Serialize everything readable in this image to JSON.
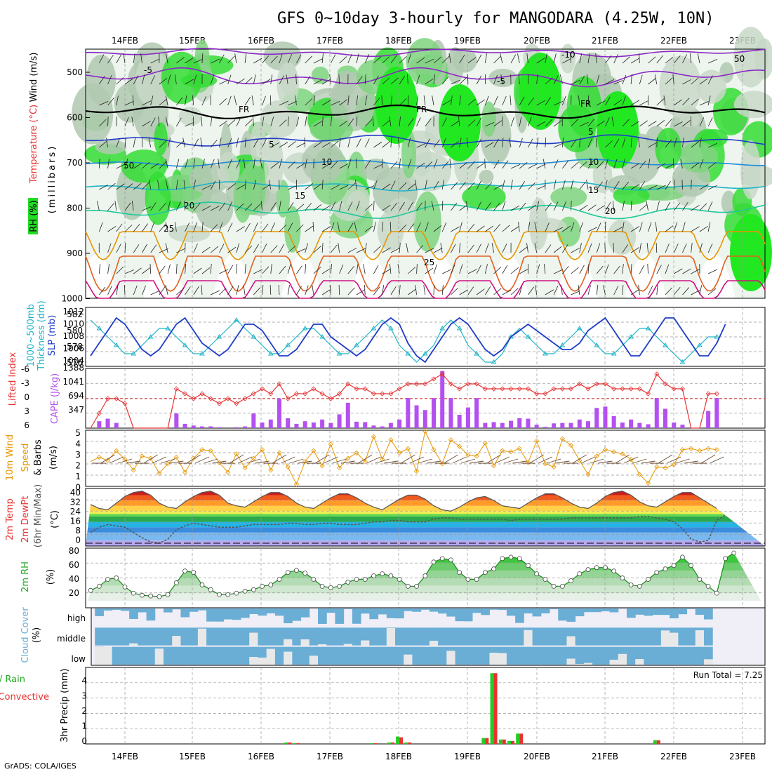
{
  "title": "GFS 0~10day 3-hourly for MANGODARA (4.25W, 10N)",
  "footer": "GrADS: COLA/IGES",
  "dates": [
    "14FEB",
    "15FEB",
    "16FEB",
    "17FEB",
    "18FEB",
    "19FEB",
    "20FEB",
    "21FEB",
    "22FEB",
    "23FEB"
  ],
  "colors": {
    "green": "#00c800",
    "red": "#e83232",
    "orange": "#e69600",
    "purple": "#b450f0",
    "blue": "#1e3cc8",
    "cyan": "#1eb4c8",
    "cloud": "#6aaed6"
  },
  "panels": {
    "upper_air": {
      "labels": [
        "RH (%)",
        "Temperature (°C)",
        "Wind (m/s)",
        "(millibars)"
      ],
      "y_ticks": [
        "500",
        "600",
        "700",
        "800",
        "900",
        "1000"
      ],
      "contour_labels": [
        "-10",
        "-5",
        "-5",
        "FR",
        "FR",
        "FR",
        "5",
        "5",
        "10",
        "10",
        "15",
        "15",
        "20",
        "20",
        "25",
        "25",
        "50",
        "50"
      ]
    },
    "slp": {
      "labels": [
        "1000~500mb",
        "Thickness (dm)",
        "SLP (mb)"
      ],
      "left_ticks": [
        "582",
        "580",
        "578",
        "576"
      ],
      "right_ticks": [
        "1012",
        "1010",
        "1008",
        "1006",
        "1004"
      ]
    },
    "cape": {
      "labels": [
        "Lifted Index",
        "CAPE (J/kg)"
      ],
      "left_ticks": [
        "-6",
        "-3",
        "0",
        "3",
        "6"
      ],
      "right_ticks": [
        "1388",
        "1041",
        "694",
        "347"
      ]
    },
    "wind10m": {
      "labels": [
        "10m Wind",
        "Speed",
        "& Barbs",
        "(m/s)"
      ],
      "y_ticks": [
        "5",
        "4",
        "3",
        "2",
        "1",
        "0"
      ]
    },
    "temp2m": {
      "labels": [
        "2m Temp",
        "2m DewPt",
        "(6hr Min/Max)",
        "(°C)"
      ],
      "y_ticks": [
        "40",
        "32",
        "24",
        "16",
        "8",
        "0"
      ]
    },
    "rh2m": {
      "labels": [
        "2m RH",
        "(%)"
      ],
      "y_ticks": [
        "80",
        "60",
        "40",
        "20"
      ]
    },
    "cloud": {
      "labels": [
        "Cloud Cover",
        "(%)"
      ],
      "levels": [
        "high",
        "middle",
        "low"
      ]
    },
    "precip": {
      "labels": [
        "Total / Rain",
        "Convective",
        "3hr Precip (mm)"
      ],
      "y_ticks": [
        "4",
        "3",
        "2",
        "1",
        "0"
      ],
      "run_total": "Run Total = 7.25"
    }
  },
  "chart_data": [
    {
      "type": "line",
      "name_key": "slp",
      "x_unit": "forecast step (3-hourly)",
      "series": [
        {
          "name": "SLP (mb)",
          "values": [
            1010,
            1010,
            1010,
            1009,
            1008,
            1006,
            1006,
            1008,
            1010,
            1009,
            1008,
            1007,
            1005,
            1005,
            1007,
            1009,
            1011,
            1010,
            1008,
            1006,
            1005,
            1006,
            1008,
            1010,
            1011,
            1009,
            1007,
            1006,
            1005,
            1006,
            1008,
            1010,
            1010,
            1009,
            1007,
            1005,
            1005,
            1006,
            1008,
            1010,
            1010,
            1008,
            1007,
            1006,
            1005,
            1006,
            1008,
            1010,
            1011,
            1010,
            1007,
            1005,
            1004,
            1006,
            1008,
            1010,
            1011,
            1010,
            1008,
            1006,
            1005,
            1006,
            1008,
            1009,
            1010,
            1009,
            1008,
            1007,
            1006,
            1006,
            1007,
            1009,
            1010,
            1011,
            1009,
            1007,
            1005,
            1005,
            1007,
            1009,
            1011,
            1011,
            1009,
            1007,
            1005,
            1005,
            1007,
            1010
          ]
        },
        {
          "name": "1000~500mb Thickness (dm)",
          "values": [
            578,
            578.5,
            579,
            580,
            581,
            582,
            581,
            579,
            578,
            578,
            579,
            580,
            581,
            581,
            580,
            579,
            578,
            577,
            577,
            578,
            579,
            580,
            580,
            579,
            578,
            577,
            577,
            578,
            579,
            580,
            581,
            580,
            579,
            578,
            577,
            577,
            578,
            579,
            580,
            580,
            579,
            578,
            577,
            577,
            578,
            579,
            580,
            581,
            580,
            578,
            577,
            576,
            577,
            578,
            580,
            581,
            580,
            578,
            577,
            576,
            576,
            577,
            579,
            580,
            579,
            578,
            577,
            577,
            578,
            579,
            580,
            579,
            578,
            577,
            577,
            578,
            579,
            580,
            580,
            579,
            578,
            577,
            576,
            577,
            578,
            579,
            579
          ]
        }
      ]
    },
    {
      "type": "bar",
      "name_key": "cape",
      "series": [
        {
          "name": "CAPE (J/kg)",
          "values": [
            0,
            0,
            0,
            0,
            0,
            0,
            0,
            40,
            60,
            0,
            0,
            0,
            0,
            0,
            160,
            220,
            120,
            0,
            0,
            0,
            0,
            0,
            0,
            340,
            100,
            60,
            40,
            40,
            20,
            0,
            20,
            40,
            340,
            130,
            200,
            690,
            230,
            100,
            160,
            130,
            200,
            120,
            320,
            590,
            150,
            140,
            60,
            40,
            120,
            200,
            700,
            530,
            420,
            700,
            1330,
            700,
            310,
            480,
            700,
            120,
            140,
            120,
            170,
            230,
            220,
            80,
            30,
            110,
            120,
            120,
            200,
            160,
            470,
            500,
            280,
            130,
            200,
            120,
            90,
            700,
            450,
            130,
            80,
            0,
            0,
            400,
            700
          ]
        },
        {
          "name": "Lifted Index",
          "values": [
            5,
            6,
            6,
            6,
            6,
            6,
            5,
            0,
            0,
            1,
            6,
            6,
            6,
            6,
            3,
            0,
            0,
            1,
            6,
            6,
            6,
            6,
            6,
            -2,
            -1,
            0,
            -1,
            0,
            1,
            0,
            1,
            0,
            -1,
            -2,
            -1,
            -3,
            0,
            -1,
            -1,
            -2,
            -1,
            0,
            -1,
            -3,
            -2,
            -2,
            -1,
            -1,
            -1,
            -2,
            -3,
            -3,
            -3,
            -4,
            -5,
            -3,
            -2,
            -3,
            -3,
            -2,
            -2,
            -2,
            -2,
            -2,
            -2,
            -1,
            -1,
            -2,
            -2,
            -2,
            -3,
            -2,
            -3,
            -3,
            -2,
            -2,
            -2,
            -2,
            -1,
            -5,
            -3,
            -2,
            -2,
            6,
            6,
            -1,
            -1
          ]
        }
      ]
    },
    {
      "type": "line",
      "name_key": "wind10m",
      "series": [
        {
          "name": "10m Wind Speed (m/s)",
          "values": [
            1.0,
            1.8,
            0.4,
            1.0,
            1.3,
            1.8,
            2.2,
            2.5,
            3.0,
            3.3,
            2.0,
            2.4,
            2.6,
            2.3,
            2.7,
            2.4,
            3.3,
            2.5,
            1.5,
            2.8,
            2.6,
            1.2,
            2.1,
            2.7,
            1.3,
            2.6,
            3.4,
            3.3,
            2.2,
            1.3,
            3.0,
            1.7,
            2.6,
            3.4,
            1.5,
            3.1,
            1.8,
            0.2,
            2.3,
            3.3,
            1.9,
            3.9,
            1.7,
            2.6,
            3.1,
            2.3,
            4.6,
            2.5,
            4.3,
            3.1,
            3.5,
            1.4,
            5.1,
            3.4,
            2.1,
            4.3,
            3.7,
            2.9,
            2.8,
            4.0,
            1.9,
            3.3,
            3.2,
            3.5,
            2.2,
            4.2,
            2.1,
            1.8,
            4.4,
            3.8,
            2.4,
            1.1,
            2.8,
            3.4,
            3.2,
            3.0,
            2.5,
            1.1,
            0.3,
            1.8,
            1.7,
            2.0,
            3.4,
            3.5,
            3.3,
            3.5,
            3.4
          ]
        }
      ]
    },
    {
      "type": "area",
      "name_key": "temp2m",
      "series": [
        {
          "name": "2m Temp (°C)",
          "values": [
            29,
            33,
            36,
            37,
            33,
            29,
            27,
            25,
            30,
            35,
            38,
            38,
            35,
            29,
            26,
            25,
            30,
            35,
            38,
            39,
            36,
            30,
            27,
            26,
            31,
            35,
            38,
            39,
            36,
            30,
            28,
            27,
            31,
            35,
            38,
            38,
            35,
            30,
            27,
            26,
            30,
            34,
            37,
            37,
            34,
            30,
            27,
            25,
            29,
            33,
            36,
            36,
            33,
            28,
            25,
            24,
            27,
            31,
            34,
            35,
            32,
            28,
            27,
            26,
            30,
            34,
            37,
            37,
            34,
            30,
            27,
            26,
            30,
            35,
            38,
            39,
            36,
            31,
            28,
            27,
            31,
            35,
            38,
            38,
            34,
            30,
            26
          ]
        },
        {
          "name": "2m DewPt (°C)",
          "values": [
            4,
            3,
            2,
            1,
            1,
            0,
            1,
            4,
            8,
            10,
            10,
            8,
            6,
            8,
            12,
            14,
            13,
            12,
            8,
            4,
            1,
            0,
            3,
            10,
            13,
            15,
            14,
            13,
            12,
            12,
            12,
            13,
            14,
            14,
            14,
            14,
            15,
            15,
            14,
            14,
            15,
            15,
            14,
            14,
            14,
            15,
            16,
            16,
            17,
            17,
            16,
            16,
            16,
            18,
            19,
            19,
            18,
            18,
            18,
            18,
            18,
            18,
            17,
            18,
            18,
            18,
            18,
            18,
            18,
            19,
            19,
            19,
            19,
            19,
            19,
            19,
            19,
            20,
            20,
            19,
            18,
            16,
            11,
            3,
            1,
            2,
            17,
            21
          ]
        }
      ]
    },
    {
      "type": "area",
      "name_key": "rh2m",
      "series": [
        {
          "name": "2m RH (%)",
          "values": [
            20,
            15,
            15,
            16,
            16,
            17,
            18,
            20,
            22,
            22,
            22,
            21,
            20,
            24,
            30,
            40,
            42,
            29,
            20,
            17,
            16,
            15,
            18,
            35,
            52,
            50,
            32,
            25,
            18,
            18,
            20,
            23,
            25,
            30,
            32,
            40,
            50,
            53,
            49,
            40,
            30,
            28,
            30,
            36,
            40,
            40,
            45,
            48,
            45,
            40,
            30,
            30,
            45,
            65,
            70,
            68,
            50,
            40,
            40,
            50,
            55,
            70,
            72,
            70,
            60,
            48,
            40,
            30,
            30,
            38,
            48,
            54,
            57,
            57,
            52,
            42,
            32,
            30,
            40,
            50,
            55,
            60,
            72,
            60,
            40,
            30,
            20,
            70,
            78
          ]
        }
      ]
    },
    {
      "type": "bar",
      "name_key": "precip",
      "series": [
        {
          "name": "Total / Rain (mm)",
          "values": [
            0,
            0,
            0,
            0,
            0,
            0,
            0,
            0,
            0,
            0,
            0,
            0,
            0,
            0,
            0,
            0,
            0,
            0,
            0,
            0,
            0,
            0,
            0,
            0,
            0,
            0,
            0,
            0,
            0,
            0,
            0,
            0,
            0,
            0,
            0,
            0,
            0.1,
            0.05,
            0,
            0,
            0,
            0,
            0,
            0,
            0,
            0,
            0.05,
            0,
            0.1,
            0.5,
            0.1,
            0,
            0,
            0,
            0,
            0,
            0,
            0,
            0,
            0.4,
            4.8,
            0.3,
            0.2,
            0.7,
            0,
            0,
            0,
            0,
            0,
            0,
            0,
            0,
            0,
            0,
            0,
            0,
            0,
            0,
            0,
            0.25,
            0,
            0,
            0,
            0,
            0,
            0,
            0
          ]
        },
        {
          "name": "Convective (mm)",
          "values": [
            0,
            0,
            0,
            0,
            0,
            0,
            0,
            0,
            0,
            0,
            0,
            0,
            0,
            0,
            0,
            0,
            0,
            0,
            0,
            0,
            0,
            0,
            0,
            0,
            0,
            0,
            0,
            0,
            0,
            0,
            0,
            0,
            0,
            0,
            0,
            0,
            0.1,
            0.05,
            0,
            0,
            0,
            0,
            0,
            0,
            0,
            0,
            0.05,
            0,
            0.1,
            0.45,
            0.1,
            0,
            0,
            0,
            0,
            0,
            0,
            0,
            0,
            0.4,
            4.8,
            0.3,
            0.2,
            0.7,
            0,
            0,
            0,
            0,
            0,
            0,
            0,
            0,
            0,
            0,
            0,
            0,
            0,
            0,
            0,
            0.25,
            0,
            0,
            0,
            0,
            0,
            0,
            0
          ]
        }
      ]
    }
  ]
}
